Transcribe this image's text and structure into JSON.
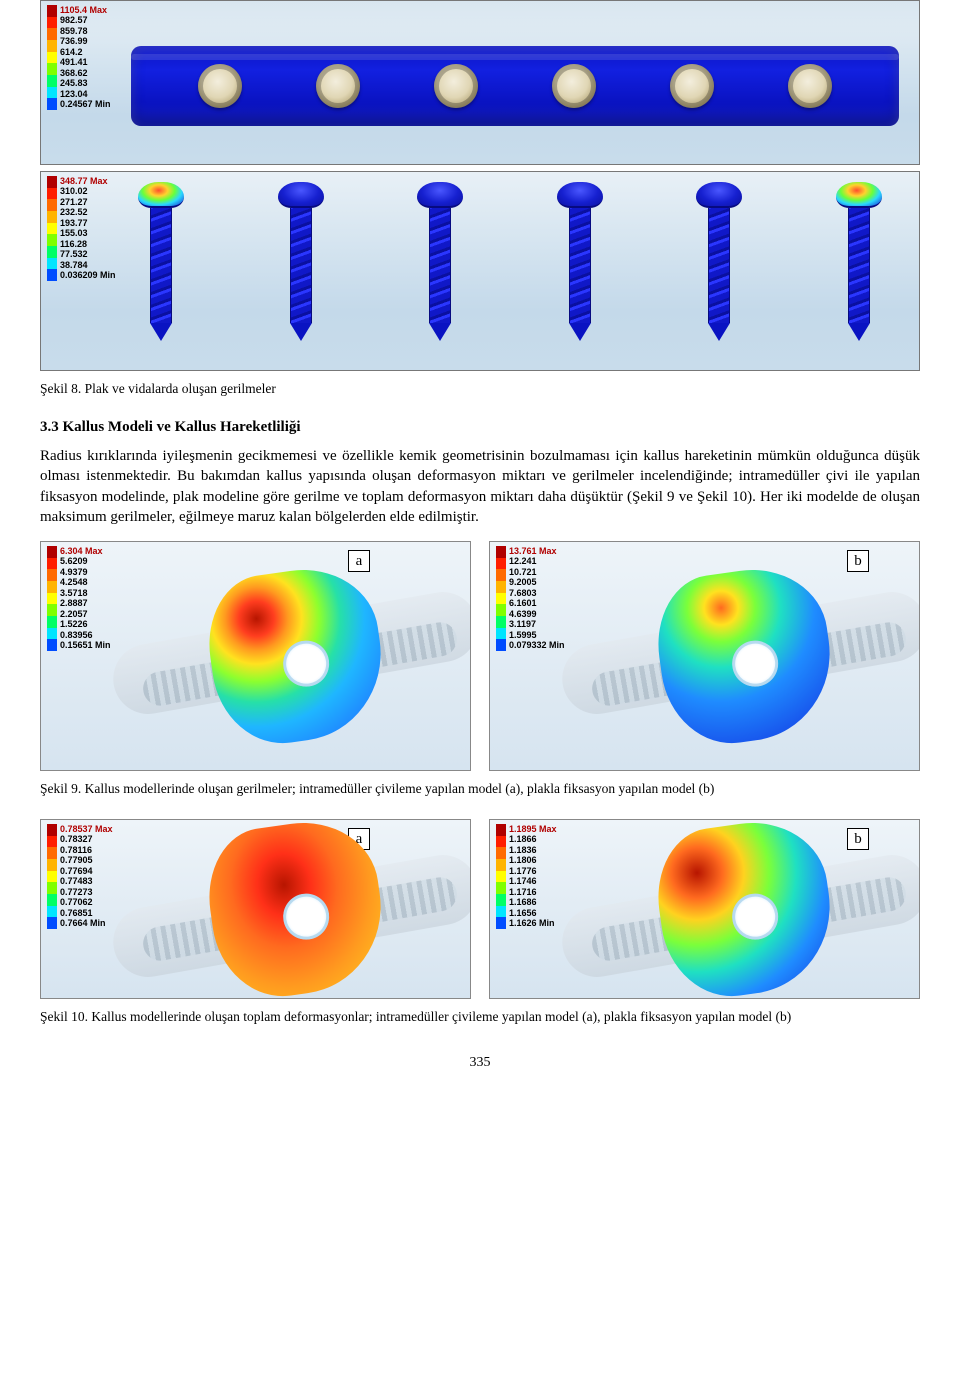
{
  "fig8": {
    "legend_plate": {
      "colors": [
        "#b00000",
        "#ff1e00",
        "#ff6a00",
        "#ffb400",
        "#ffff00",
        "#7fff00",
        "#00ff66",
        "#00e5ff",
        "#004cff"
      ],
      "labels": [
        "1105.4 Max",
        "982.57",
        "859.78",
        "736.99",
        "614.2",
        "491.41",
        "368.62",
        "245.83",
        "123.04",
        "0.24567 Min"
      ]
    },
    "legend_screws": {
      "colors": [
        "#b00000",
        "#ff1e00",
        "#ff6a00",
        "#ffb400",
        "#ffff00",
        "#7fff00",
        "#00ff66",
        "#00e5ff",
        "#004cff"
      ],
      "labels": [
        "348.77 Max",
        "310.02",
        "271.27",
        "232.52",
        "193.77",
        "155.03",
        "116.28",
        "77.532",
        "38.784",
        "0.036209 Min"
      ]
    },
    "caption": "Şekil 8. Plak ve vidalarda oluşan gerilmeler"
  },
  "section_title": "3.3  Kallus Modeli ve Kallus Hareketliliği",
  "paragraph": "Radius kırıklarında iyileşmenin gecikmemesi ve özellikle kemik geometrisinin bozulmaması için kallus hareketinin mümkün olduğunca düşük olması istenmektedir. Bu bakımdan kallus yapısında oluşan deformasyon miktarı ve gerilmeler incelendiğinde; intramedüller çivi ile yapılan fiksasyon modelinde, plak modeline göre gerilme ve toplam deformasyon miktarı daha düşüktür (Şekil 9 ve Şekil 10). Her iki modelde de oluşan maksimum gerilmeler, eğilmeye maruz kalan bölgelerden elde edilmiştir.",
  "fig9": {
    "legend_a": {
      "colors": [
        "#b00000",
        "#ff1e00",
        "#ff6a00",
        "#ffb400",
        "#ffff00",
        "#7fff00",
        "#00ff66",
        "#00e5ff",
        "#004cff"
      ],
      "labels": [
        "6.304 Max",
        "5.6209",
        "4.9379",
        "4.2548",
        "3.5718",
        "2.8887",
        "2.2057",
        "1.5226",
        "0.83956",
        "0.15651 Min"
      ]
    },
    "legend_b": {
      "colors": [
        "#b00000",
        "#ff1e00",
        "#ff6a00",
        "#ffb400",
        "#ffff00",
        "#7fff00",
        "#00ff66",
        "#00e5ff",
        "#004cff"
      ],
      "labels": [
        "13.761 Max",
        "12.241",
        "10.721",
        "9.2005",
        "7.6803",
        "6.1601",
        "4.6399",
        "3.1197",
        "1.5995",
        "0.079332 Min"
      ]
    },
    "caption": "Şekil 9. Kallus modellerinde oluşan gerilmeler; intramedüller çivileme yapılan model (a), plakla fiksasyon yapılan model (b)"
  },
  "fig10": {
    "legend_a": {
      "colors": [
        "#b00000",
        "#ff1e00",
        "#ff6a00",
        "#ffb400",
        "#ffff00",
        "#7fff00",
        "#00ff66",
        "#00e5ff",
        "#004cff"
      ],
      "labels": [
        "0.78537 Max",
        "0.78327",
        "0.78116",
        "0.77905",
        "0.77694",
        "0.77483",
        "0.77273",
        "0.77062",
        "0.76851",
        "0.7664 Min"
      ]
    },
    "legend_b": {
      "colors": [
        "#b00000",
        "#ff1e00",
        "#ff6a00",
        "#ffb400",
        "#ffff00",
        "#7fff00",
        "#00ff66",
        "#00e5ff",
        "#004cff"
      ],
      "labels": [
        "1.1895 Max",
        "1.1866",
        "1.1836",
        "1.1806",
        "1.1776",
        "1.1746",
        "1.1716",
        "1.1686",
        "1.1656",
        "1.1626 Min"
      ]
    },
    "caption": "Şekil 10. Kallus modellerinde oluşan toplam deformasyonlar; intramedüller çivileme yapılan model (a), plakla fiksasyon yapılan model (b)"
  },
  "page_number": "335",
  "letters": {
    "a": "a",
    "b": "b"
  }
}
